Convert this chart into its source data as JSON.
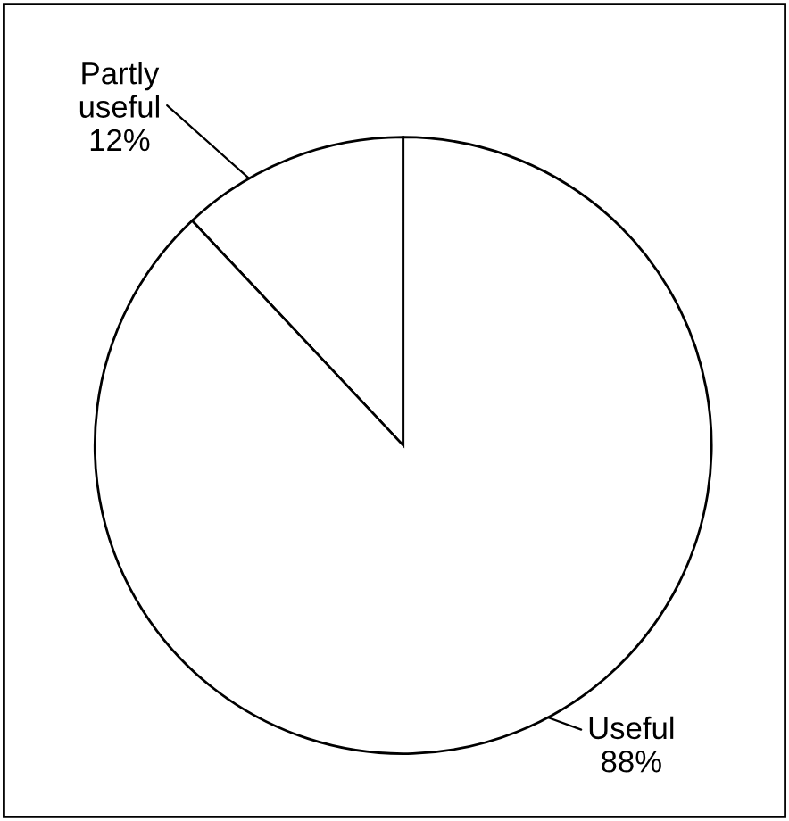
{
  "chart_data": {
    "type": "pie",
    "categories": [
      "Partly useful",
      "Useful"
    ],
    "values": [
      12,
      88
    ],
    "value_labels": [
      "12%",
      "88%"
    ],
    "colors": [
      "#ffffff",
      "#ffffff"
    ],
    "legend": false
  }
}
